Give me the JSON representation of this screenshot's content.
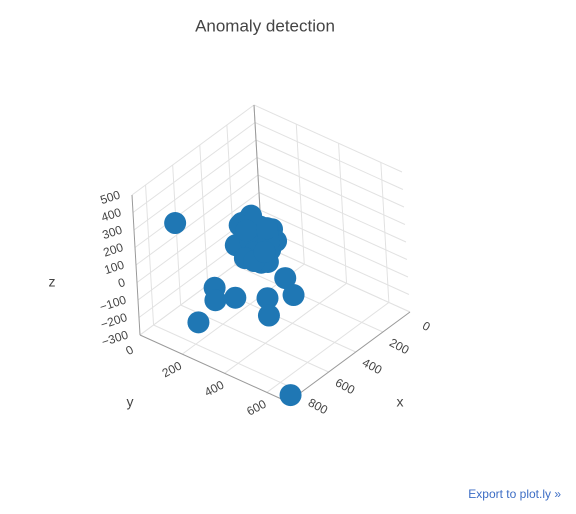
{
  "chart_data": {
    "type": "scatter3d",
    "title": "Anomaly detection",
    "x_label": "x",
    "y_label": "y",
    "z_label": "z",
    "color": "#1f77b4",
    "grid": true,
    "xlim": [
      0,
      900
    ],
    "ylim": [
      0,
      700
    ],
    "zlim": [
      -300,
      500
    ],
    "xticks": [
      0,
      200,
      400,
      600,
      800
    ],
    "yticks": [
      0,
      200,
      400,
      600
    ],
    "zticks": [
      {
        "value": -300,
        "label": "−300"
      },
      {
        "value": -200,
        "label": "−200"
      },
      {
        "value": -100,
        "label": "−100"
      },
      0,
      100,
      200,
      300,
      400,
      500
    ],
    "x": [
      420,
      470,
      390,
      510,
      450,
      480,
      360,
      530,
      440,
      400,
      500,
      460,
      430,
      550,
      380,
      490,
      410,
      520,
      470,
      440,
      350,
      560,
      450,
      400,
      480,
      430,
      500,
      460,
      420,
      390,
      520,
      470,
      440,
      410,
      480,
      810,
      567,
      600,
      700,
      560,
      420,
      330,
      380,
      650,
      850
    ],
    "y": [
      280,
      300,
      250,
      320,
      270,
      240,
      300,
      280,
      340,
      220,
      260,
      310,
      290,
      250,
      330,
      360,
      200,
      300,
      230,
      260,
      270,
      330,
      300,
      280,
      290,
      250,
      240,
      350,
      320,
      300,
      270,
      280,
      230,
      310,
      340,
      140,
      147,
      170,
      150,
      240,
      300,
      330,
      400,
      460,
      680
    ],
    "z": [
      120,
      150,
      90,
      140,
      180,
      130,
      160,
      100,
      110,
      200,
      170,
      60,
      210,
      150,
      120,
      80,
      170,
      190,
      220,
      40,
      140,
      120,
      20,
      60,
      90,
      250,
      230,
      140,
      180,
      100,
      70,
      30,
      160,
      200,
      120,
      365,
      -140,
      -180,
      -260,
      -150,
      -200,
      -120,
      -150,
      -80,
      -300
    ],
    "export_link": "Export to plot.ly »"
  }
}
